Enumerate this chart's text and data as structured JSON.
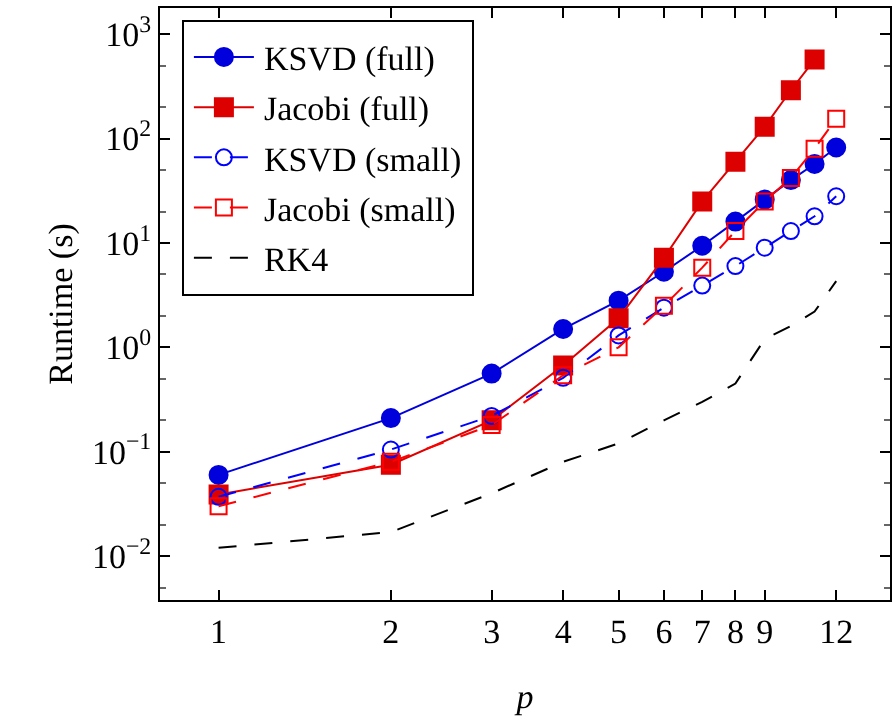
{
  "chart_data": {
    "type": "line",
    "xlabel": "p",
    "ylabel": "Runtime (s)",
    "log": "xy",
    "grid": false,
    "legend": "top left",
    "xlim": [
      0.79,
      14.9
    ],
    "xticks": [
      1,
      2,
      3,
      4,
      5,
      6,
      7,
      8,
      9,
      12
    ],
    "ylim": [
      0.0038,
      1780
    ],
    "yticks": [
      {
        "value": 0.01,
        "label": "10$^{−2}$"
      },
      {
        "value": 0.1,
        "label": "10$^{−1}$"
      },
      {
        "value": 1,
        "label": "10$^{0}$"
      },
      {
        "value": 10,
        "label": "10$^{1}$"
      },
      {
        "value": 100,
        "label": "10$^{2}$"
      },
      {
        "value": 1000,
        "label": "10$^{3}$"
      }
    ],
    "x": [
      1,
      2,
      3,
      4,
      5,
      6,
      7,
      8,
      9,
      10,
      11,
      12
    ],
    "series": [
      {
        "name": "KSVD (full)",
        "color": "#0000dd",
        "marker": "circle",
        "line_style": "solid",
        "values": [
          0.06,
          0.21,
          0.56,
          1.5,
          2.8,
          5.3,
          9.4,
          16,
          26,
          40,
          57,
          82
        ]
      },
      {
        "name": "Jacobi (full)",
        "color": "#dd0000",
        "marker": "square",
        "line_style": "solid",
        "values": [
          0.039,
          0.075,
          0.2,
          0.67,
          1.9,
          7.2,
          25,
          60,
          130,
          290,
          570,
          null
        ]
      },
      {
        "name": "KSVD (small)",
        "color": "#0000ff",
        "marker": "circle",
        "line_style": "dashed",
        "values": [
          0.037,
          0.105,
          0.22,
          0.51,
          1.3,
          2.4,
          3.9,
          6,
          9,
          13,
          18,
          28
        ]
      },
      {
        "name": "Jacobi (small)",
        "color": "#ff0000",
        "marker": "square",
        "line_style": "dashed",
        "values": [
          0.03,
          0.08,
          0.18,
          0.54,
          1.0,
          2.5,
          5.8,
          13,
          25,
          42,
          80,
          155
        ]
      },
      {
        "name": "RK4",
        "color": "#000000",
        "marker": "none",
        "line_style": "dashed",
        "values": [
          0.012,
          0.017,
          0.04,
          0.08,
          0.12,
          0.2,
          0.3,
          0.45,
          1.2,
          1.6,
          2.2,
          4.3
        ]
      }
    ]
  }
}
